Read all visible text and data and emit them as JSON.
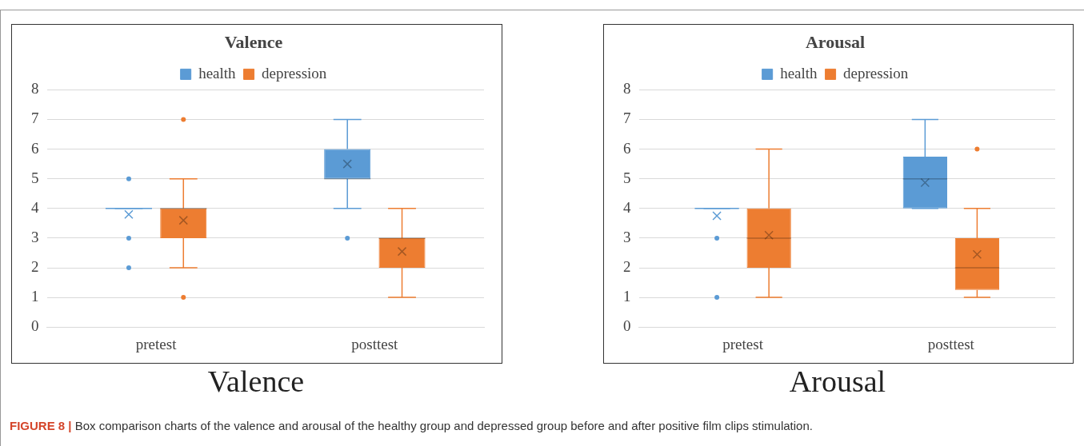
{
  "chart_data": [
    {
      "type": "box",
      "title": "Valence",
      "categories": [
        "pretest",
        "posttest"
      ],
      "ylim": [
        0,
        8
      ],
      "yticks": [
        0,
        1,
        2,
        3,
        4,
        5,
        6,
        7,
        8
      ],
      "grid": "y",
      "legend": "top",
      "series": [
        {
          "name": "health",
          "color": "#5b9bd5",
          "boxes": [
            {
              "low": 4,
              "q1": 4,
              "median": 4,
              "q3": 4,
              "high": 4,
              "mean": 3.8,
              "outliers": [
                5,
                3,
                2
              ]
            },
            {
              "low": 4,
              "q1": 5,
              "median": 5,
              "q3": 6,
              "high": 7,
              "mean": 5.5,
              "outliers": [
                3
              ]
            }
          ]
        },
        {
          "name": "depression",
          "color": "#ed7d31",
          "boxes": [
            {
              "low": 2,
              "q1": 3,
              "median": 4,
              "q3": 4,
              "high": 5,
              "mean": 3.6,
              "outliers": [
                7,
                1
              ]
            },
            {
              "low": 1,
              "q1": 2,
              "median": 3,
              "q3": 3,
              "high": 4,
              "mean": 2.55
            }
          ]
        }
      ],
      "annotations": [
        "Valence",
        "FIGURE 8 | Box comparison charts of the valence and arousal of the healthy group and depressed group before and after positive film clips stimulation."
      ]
    },
    {
      "type": "box",
      "title": "Arousal",
      "categories": [
        "pretest",
        "posttest"
      ],
      "ylim": [
        0,
        8
      ],
      "yticks": [
        0,
        1,
        2,
        3,
        4,
        5,
        6,
        7,
        8
      ],
      "grid": "y",
      "legend": "top",
      "series": [
        {
          "name": "health",
          "color": "#5b9bd5",
          "boxes": [
            {
              "low": 4,
              "q1": 4,
              "median": 4,
              "q3": 4,
              "high": 4,
              "mean": 3.75,
              "outliers": [
                3,
                1
              ]
            },
            {
              "low": 4,
              "q1": 4,
              "median": 5,
              "q3": 5.75,
              "high": 7,
              "mean": 4.87
            }
          ]
        },
        {
          "name": "depression",
          "color": "#ed7d31",
          "boxes": [
            {
              "low": 1,
              "q1": 2,
              "median": 3,
              "q3": 4,
              "high": 6,
              "mean": 3.1
            },
            {
              "low": 1,
              "q1": 1.25,
              "median": 2,
              "q3": 3,
              "high": 4,
              "mean": 2.45,
              "outliers": [
                6
              ]
            }
          ]
        }
      ],
      "annotations": [
        "Arousal"
      ]
    }
  ]
}
